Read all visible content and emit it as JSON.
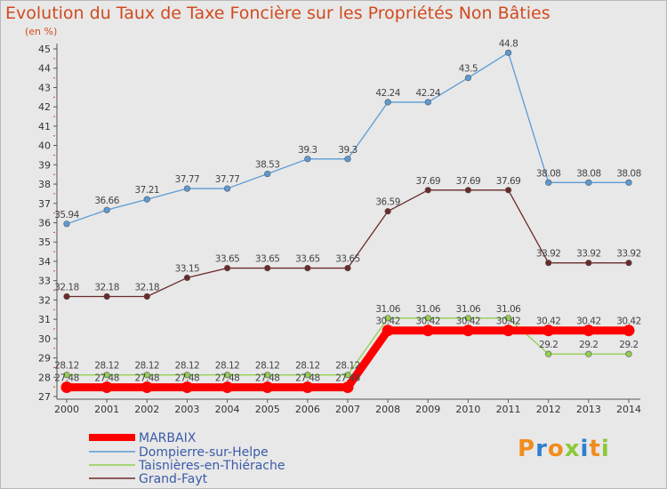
{
  "header": {
    "title": "Evolution du Taux de Taxe Foncière sur les Propriétés Non Bâties",
    "unit": "(en %)"
  },
  "logo": {
    "letters": [
      "P",
      "r",
      "o",
      "x",
      "i",
      "t",
      "i"
    ],
    "colors": [
      "#f08c1e",
      "#2e7fd0",
      "#f08c1e",
      "#8cc83c",
      "#2e7fd0",
      "#f08c1e",
      "#8cc83c"
    ]
  },
  "chart_data": {
    "type": "line",
    "title": "Evolution du Taux de Taxe Foncière sur les Propriétés Non Bâties",
    "ylabel": "(en %)",
    "xlabel": "",
    "ylim": [
      27,
      45
    ],
    "yticks": [
      "27",
      "28",
      "29",
      "30",
      "31",
      "32",
      "33",
      "34",
      "35",
      "36",
      "37",
      "38",
      "39",
      "40",
      "41",
      "42",
      "43",
      "44",
      "45"
    ],
    "categories": [
      "2000",
      "2001",
      "2002",
      "2003",
      "2004",
      "2005",
      "2006",
      "2007",
      "2008",
      "2009",
      "2010",
      "2011",
      "2012",
      "2013",
      "2014"
    ],
    "grid": false,
    "legend_position": "bottom-left",
    "series": [
      {
        "name": "MARBAIX",
        "color": "#ff0000",
        "values": [
          27.48,
          27.48,
          27.48,
          27.48,
          27.48,
          27.48,
          27.48,
          27.48,
          30.42,
          30.42,
          30.42,
          30.42,
          30.42,
          30.42,
          30.42
        ],
        "labels": [
          "27.48",
          "27.48",
          "27.48",
          "27.48",
          "27.48",
          "27.48",
          "27.48",
          "27.48",
          "30.42",
          "30.42",
          "30.42",
          "30.42",
          "30.42",
          "30.42",
          "30.42"
        ]
      },
      {
        "name": "Dompierre-sur-Helpe",
        "color": "#5b9bd5",
        "values": [
          35.94,
          36.66,
          37.21,
          37.77,
          37.77,
          38.53,
          39.3,
          39.3,
          42.24,
          42.24,
          43.5,
          44.8,
          38.08,
          38.08,
          38.08
        ],
        "labels": [
          "35.94",
          "36.66",
          "37.21",
          "37.77",
          "37.77",
          "38.53",
          "39.3",
          "39.3",
          "42.24",
          "42.24",
          "43.5",
          "44.8",
          "38.08",
          "38.08",
          "38.08"
        ]
      },
      {
        "name": "Taisnières-en-Thiérache",
        "color": "#92d050",
        "values": [
          28.12,
          28.12,
          28.12,
          28.12,
          28.12,
          28.12,
          28.12,
          28.12,
          31.06,
          31.06,
          31.06,
          31.06,
          29.2,
          29.2,
          29.2
        ],
        "labels": [
          "28.12",
          "28.12",
          "28.12",
          "28.12",
          "28.12",
          "28.12",
          "28.12",
          "28.12",
          "31.06",
          "31.06",
          "31.06",
          "31.06",
          "29.2",
          "29.2",
          "29.2"
        ]
      },
      {
        "name": "Grand-Fayt",
        "color": "#6b2a2a",
        "values": [
          32.18,
          32.18,
          32.18,
          33.15,
          33.65,
          33.65,
          33.65,
          33.65,
          36.59,
          37.69,
          37.69,
          37.69,
          33.92,
          33.92,
          33.92
        ],
        "labels": [
          "32.18",
          "32.18",
          "32.18",
          "33.15",
          "33.65",
          "33.65",
          "33.65",
          "33.65",
          "36.59",
          "37.69",
          "37.69",
          "37.69",
          "33.92",
          "33.92",
          "33.92"
        ]
      }
    ]
  }
}
